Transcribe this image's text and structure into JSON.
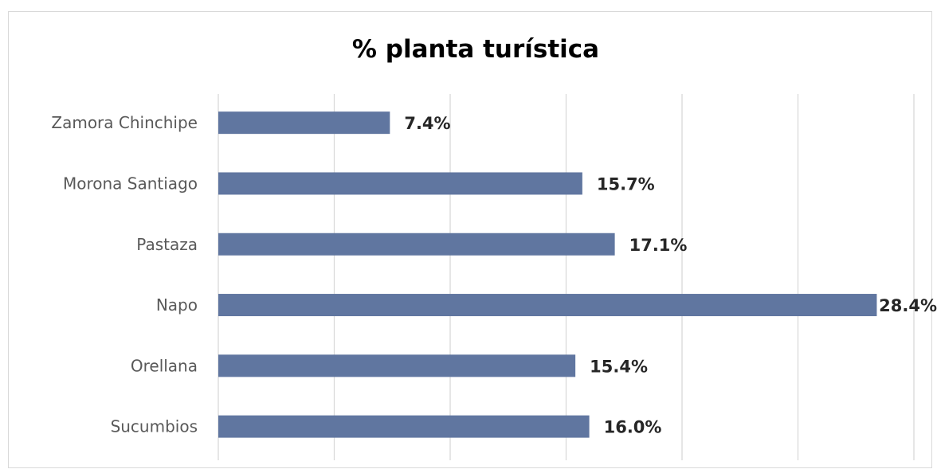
{
  "chart_data": {
    "type": "bar",
    "orientation": "horizontal",
    "title": "% planta turística",
    "categories": [
      "Zamora Chinchipe",
      "Morona Santiago",
      "Pastaza",
      "Napo",
      "Orellana",
      "Sucumbios"
    ],
    "values": [
      7.4,
      15.7,
      17.1,
      28.4,
      15.4,
      16.0
    ],
    "data_labels": [
      "7.4%",
      "15.7%",
      "17.1%",
      "28.4%",
      "15.4%",
      "16.0%"
    ],
    "xlim": [
      0,
      30
    ],
    "x_gridline_step": 5,
    "grid": true,
    "x_tick_labels_visible": false,
    "legend": "none",
    "bar_color": "#6076a0"
  }
}
